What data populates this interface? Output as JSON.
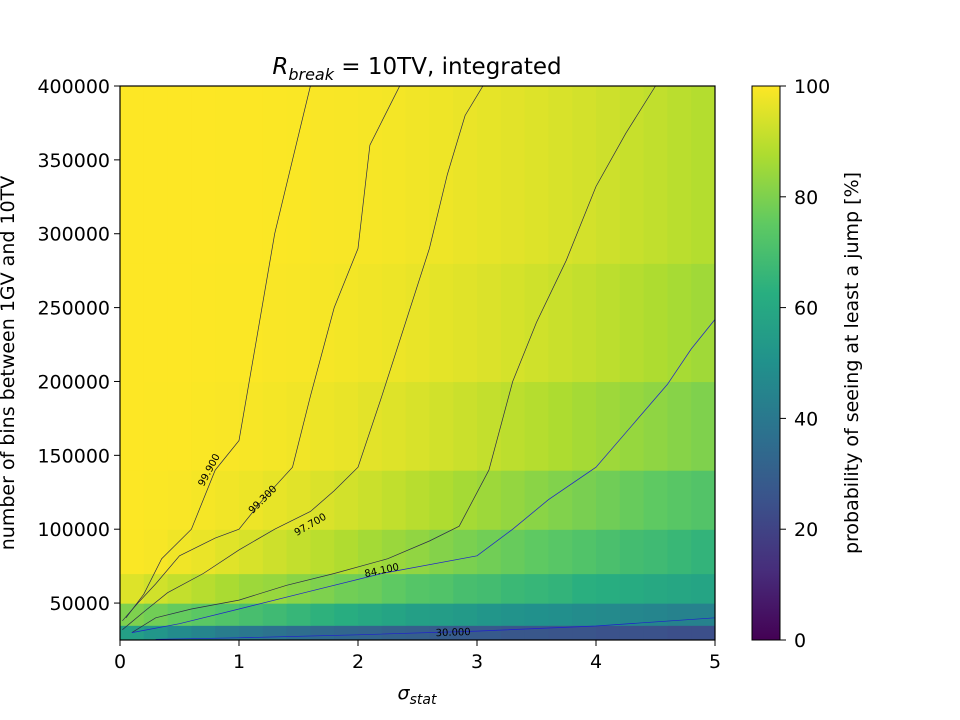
{
  "chart_data": {
    "type": "heatmap",
    "title": {
      "main": "R",
      "sub": "break",
      "rest": " = 10TV, integrated"
    },
    "xlabel": {
      "main": "σ",
      "sub": "stat"
    },
    "ylabel": "number of bins between 1GV and 10TV",
    "colorbar_label": "probability of seeing at least a jump [%]",
    "colormap": "viridis",
    "xlim": [
      0,
      5
    ],
    "ylim": [
      25000,
      400000
    ],
    "clim": [
      0,
      100
    ],
    "x_ticks": [
      {
        "value": 0,
        "label": "0"
      },
      {
        "value": 1,
        "label": "1"
      },
      {
        "value": 2,
        "label": "2"
      },
      {
        "value": 3,
        "label": "3"
      },
      {
        "value": 4,
        "label": "4"
      },
      {
        "value": 5,
        "label": "5"
      }
    ],
    "y_ticks": [
      {
        "value": 50000,
        "label": "50000"
      },
      {
        "value": 100000,
        "label": "100000"
      },
      {
        "value": 150000,
        "label": "150000"
      },
      {
        "value": 200000,
        "label": "200000"
      },
      {
        "value": 250000,
        "label": "250000"
      },
      {
        "value": 300000,
        "label": "300000"
      },
      {
        "value": 350000,
        "label": "350000"
      },
      {
        "value": 400000,
        "label": "400000"
      }
    ],
    "colorbar_ticks": [
      {
        "value": 0,
        "label": "0"
      },
      {
        "value": 20,
        "label": "20"
      },
      {
        "value": 40,
        "label": "40"
      },
      {
        "value": 60,
        "label": "60"
      },
      {
        "value": 80,
        "label": "80"
      },
      {
        "value": 100,
        "label": "100"
      }
    ],
    "x": [
      0,
      0.2,
      0.4,
      0.6,
      0.8,
      1.0,
      1.2,
      1.4,
      1.6,
      1.8,
      2.0,
      2.2,
      2.4,
      2.6,
      2.8,
      3.0,
      3.2,
      3.4,
      3.6,
      3.8,
      4.0,
      4.2,
      4.4,
      4.6,
      4.8,
      5.0
    ],
    "y": [
      25000,
      35000,
      50000,
      70000,
      100000,
      140000,
      200000,
      280000,
      400000
    ],
    "z": [
      [
        56,
        52,
        48,
        45,
        42,
        40,
        38,
        36,
        34,
        33,
        32,
        31,
        30,
        29,
        28,
        28,
        27,
        27,
        26,
        26,
        25,
        25,
        25,
        24,
        24
      ],
      [
        80,
        78,
        76,
        74,
        72,
        70,
        68,
        66,
        64,
        62,
        60,
        58,
        56,
        55,
        54,
        52,
        51,
        50,
        49,
        48,
        47,
        46,
        45,
        44,
        44
      ],
      [
        95,
        93,
        91,
        89,
        87,
        85,
        84,
        82,
        80,
        78,
        77,
        75,
        73,
        72,
        70,
        69,
        67,
        66,
        65,
        63,
        62,
        61,
        60,
        59,
        58
      ],
      [
        99.5,
        99,
        98,
        97,
        95.5,
        94,
        92.5,
        91,
        89.5,
        88,
        86,
        84.5,
        83,
        81,
        79.5,
        78,
        76.5,
        75,
        73.5,
        72,
        70.5,
        69,
        68,
        66.5,
        65
      ],
      [
        99.8,
        99.6,
        99.3,
        98.8,
        98.2,
        97.5,
        96.6,
        95.6,
        94.5,
        93.3,
        92,
        90.6,
        89.2,
        87.8,
        86.3,
        84.9,
        83.5,
        82,
        80.6,
        79.2,
        77.8,
        76.4,
        75,
        73.7,
        72.4
      ],
      [
        99.95,
        99.9,
        99.8,
        99.6,
        99.35,
        99,
        98.6,
        98.1,
        97.5,
        96.8,
        96,
        95.1,
        94.2,
        93.2,
        92.1,
        91,
        89.9,
        88.7,
        87.5,
        86.3,
        85.1,
        83.9,
        82.7,
        81.5,
        80.3
      ],
      [
        99.99,
        99.97,
        99.93,
        99.86,
        99.76,
        99.62,
        99.42,
        99.16,
        98.84,
        98.44,
        97.98,
        97.44,
        96.84,
        96.16,
        95.42,
        94.62,
        93.76,
        92.86,
        91.9,
        90.9,
        89.86,
        88.8,
        87.7,
        86.58,
        85.44
      ],
      [
        100,
        99.99,
        99.98,
        99.95,
        99.91,
        99.84,
        99.74,
        99.6,
        99.42,
        99.18,
        98.88,
        98.52,
        98.1,
        97.6,
        97.04,
        96.42,
        95.74,
        95,
        94.2,
        93.36,
        92.48,
        91.56,
        90.6,
        89.6,
        88.58
      ]
    ],
    "contours": [
      {
        "label": "99.900",
        "color": "#2b2b4a",
        "points": [
          [
            0.05,
            40000
          ],
          [
            0.2,
            56000
          ],
          [
            0.35,
            80000
          ],
          [
            0.6,
            100000
          ],
          [
            0.8,
            140000
          ],
          [
            1.0,
            160000
          ],
          [
            1.15,
            230000
          ],
          [
            1.3,
            300000
          ],
          [
            1.45,
            350000
          ],
          [
            1.6,
            400000
          ]
        ]
      },
      {
        "label": "99.300",
        "color": "#2b2b4a",
        "points": [
          [
            0.02,
            38000
          ],
          [
            0.15,
            50000
          ],
          [
            0.3,
            63000
          ],
          [
            0.5,
            82000
          ],
          [
            0.8,
            94000
          ],
          [
            1.0,
            100000
          ],
          [
            1.2,
            120000
          ],
          [
            1.45,
            142000
          ],
          [
            1.6,
            190000
          ],
          [
            1.8,
            250000
          ],
          [
            2.0,
            290000
          ],
          [
            2.1,
            360000
          ],
          [
            2.35,
            400000
          ]
        ]
      },
      {
        "label": "97.700",
        "color": "#2b2b4a",
        "points": [
          [
            0.02,
            32000
          ],
          [
            0.2,
            44000
          ],
          [
            0.4,
            57000
          ],
          [
            0.7,
            70000
          ],
          [
            1.0,
            86000
          ],
          [
            1.3,
            100000
          ],
          [
            1.6,
            112000
          ],
          [
            1.8,
            126000
          ],
          [
            2.0,
            142000
          ],
          [
            2.2,
            190000
          ],
          [
            2.4,
            240000
          ],
          [
            2.6,
            290000
          ],
          [
            2.75,
            340000
          ],
          [
            2.9,
            380000
          ],
          [
            3.05,
            400000
          ]
        ]
      },
      {
        "label": "84.100",
        "color": "#2b2b4a",
        "points": [
          [
            0.1,
            30000
          ],
          [
            0.3,
            40000
          ],
          [
            0.6,
            46000
          ],
          [
            1.0,
            52000
          ],
          [
            1.4,
            62000
          ],
          [
            1.8,
            70000
          ],
          [
            2.25,
            80000
          ],
          [
            2.6,
            92000
          ],
          [
            2.85,
            102000
          ],
          [
            3.1,
            140000
          ],
          [
            3.3,
            200000
          ],
          [
            3.5,
            240000
          ],
          [
            3.75,
            282000
          ],
          [
            4.0,
            332000
          ],
          [
            4.25,
            368000
          ],
          [
            4.5,
            400000
          ]
        ]
      },
      {
        "label": "30.000",
        "color": "#1f1fcc",
        "points": [
          [
            0.3,
            25500
          ],
          [
            1.0,
            26500
          ],
          [
            2.0,
            28500
          ],
          [
            3.0,
            31000
          ],
          [
            4.0,
            34500
          ],
          [
            5.0,
            40000
          ]
        ]
      },
      {
        "label": "",
        "color": "#1f1fcc",
        "points": [
          [
            0.1,
            30000
          ],
          [
            0.5,
            36000
          ],
          [
            1.0,
            46000
          ],
          [
            1.6,
            58000
          ],
          [
            2.2,
            70000
          ],
          [
            3.0,
            82000
          ],
          [
            3.3,
            100000
          ],
          [
            3.6,
            120000
          ],
          [
            4.0,
            142000
          ],
          [
            4.3,
            170000
          ],
          [
            4.6,
            198000
          ],
          [
            4.8,
            222000
          ],
          [
            5.0,
            242000
          ]
        ]
      }
    ],
    "contour_label_positions": [
      {
        "label": "99.900",
        "x": 0.75,
        "y": 140000,
        "angle": -62
      },
      {
        "label": "99.300",
        "x": 1.2,
        "y": 120000,
        "angle": -45
      },
      {
        "label": "97.700",
        "x": 1.6,
        "y": 103000,
        "angle": -30
      },
      {
        "label": "84.100",
        "x": 2.2,
        "y": 72000,
        "angle": -12
      },
      {
        "label": "30.000",
        "x": 2.8,
        "y": 30000,
        "angle": -2
      }
    ]
  }
}
